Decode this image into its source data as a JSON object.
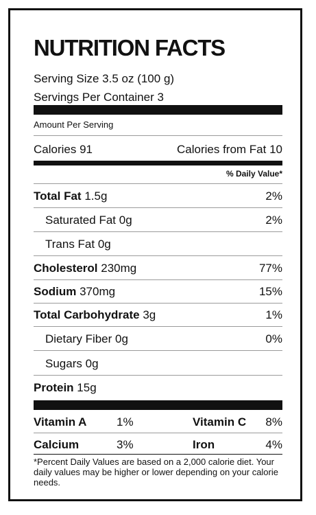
{
  "title": "NUTRITION FACTS",
  "serving_size": "Serving Size 3.5 oz (100 g)",
  "servings_per_container": "Servings Per Container 3",
  "amount_per_serving": "Amount Per Serving",
  "calories": "Calories 91",
  "calories_from_fat": "Calories from Fat 10",
  "daily_value_header": "% Daily Value*",
  "nutrients": [
    {
      "name": "Total Fat",
      "amount": "1.5g",
      "dv": "2%"
    },
    {
      "name": "Saturated Fat",
      "amount": "0g",
      "dv": "2%"
    },
    {
      "name": "Trans Fat",
      "amount": "0g",
      "dv": ""
    },
    {
      "name": "Cholesterol",
      "amount": "230mg",
      "dv": "77%"
    },
    {
      "name": "Sodium",
      "amount": "370mg",
      "dv": "15%"
    },
    {
      "name": "Total Carbohydrate",
      "amount": "3g",
      "dv": "1%"
    },
    {
      "name": "Dietary Fiber",
      "amount": "0g",
      "dv": "0%"
    },
    {
      "name": "Sugars",
      "amount": "0g",
      "dv": ""
    },
    {
      "name": "Protein",
      "amount": "15g",
      "dv": ""
    }
  ],
  "vitamins": [
    {
      "name": "Vitamin A",
      "dv": "1%"
    },
    {
      "name": "Vitamin C",
      "dv": "8%"
    },
    {
      "name": "Calcium",
      "dv": "3%"
    },
    {
      "name": "Iron",
      "dv": "4%"
    }
  ],
  "footnote": "*Percent Daily Values are based on a 2,000 calorie diet. Your daily values may be higher or lower depending on your calorie needs."
}
